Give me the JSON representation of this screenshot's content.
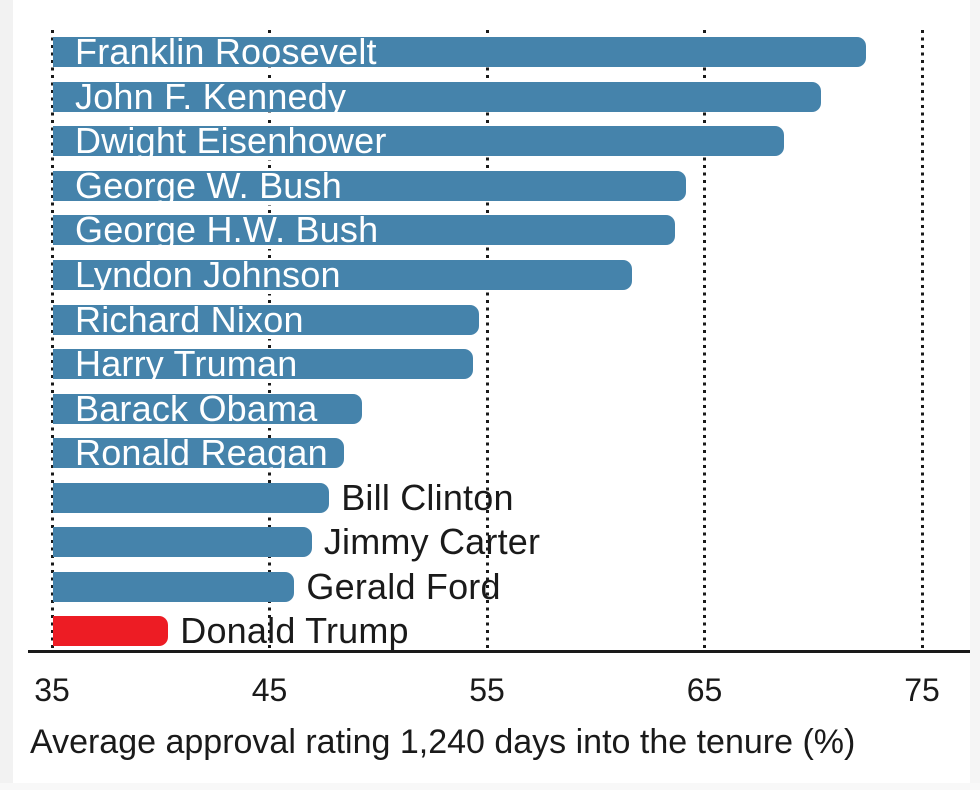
{
  "page": {
    "background": "#ffffff",
    "left_margin_color": "#f2f2f2",
    "right_margin_color": "#f5f5f5",
    "bottom_margin_color": "#f8f8f8"
  },
  "chart_data": {
    "type": "bar",
    "orientation": "horizontal",
    "title": "",
    "xlabel": "Average approval rating 1,240 days into the tenure (%)",
    "ylabel": "",
    "xlim": [
      35,
      75
    ],
    "x_ticks": [
      35,
      45,
      55,
      65,
      75
    ],
    "grid": "vertical-dotted",
    "grid_color": "#1a1a1a",
    "axis_line_color": "#1a1a1a",
    "bar_color": "#4583ab",
    "highlight_color": "#ed1c24",
    "inside_label_color": "#ffffff",
    "outside_label_color": "#1a1a1a",
    "bars": [
      {
        "name": "Franklin Roosevelt",
        "value": 72.4,
        "label_position": "inside",
        "highlight": false
      },
      {
        "name": "John F. Kennedy",
        "value": 70.3,
        "label_position": "inside",
        "highlight": false
      },
      {
        "name": "Dwight Eisenhower",
        "value": 68.6,
        "label_position": "inside",
        "highlight": false
      },
      {
        "name": "George W. Bush",
        "value": 64.1,
        "label_position": "inside",
        "highlight": false
      },
      {
        "name": "George H.W. Bush",
        "value": 63.6,
        "label_position": "inside",
        "highlight": false
      },
      {
        "name": "Lyndon Johnson",
        "value": 61.6,
        "label_position": "inside",
        "highlight": false
      },
      {
        "name": "Richard Nixon",
        "value": 54.6,
        "label_position": "inside",
        "highlight": false
      },
      {
        "name": "Harry Truman",
        "value": 54.3,
        "label_position": "inside",
        "highlight": false
      },
      {
        "name": "Barack Obama",
        "value": 49.2,
        "label_position": "inside",
        "highlight": false
      },
      {
        "name": "Ronald Reagan",
        "value": 48.4,
        "label_position": "inside",
        "highlight": false
      },
      {
        "name": "Bill Clinton",
        "value": 47.7,
        "label_position": "outside",
        "highlight": false
      },
      {
        "name": "Jimmy Carter",
        "value": 46.9,
        "label_position": "outside",
        "highlight": false
      },
      {
        "name": "Gerald Ford",
        "value": 46.1,
        "label_position": "outside",
        "highlight": false
      },
      {
        "name": "Donald Trump",
        "value": 40.3,
        "label_position": "outside",
        "highlight": true
      }
    ]
  }
}
